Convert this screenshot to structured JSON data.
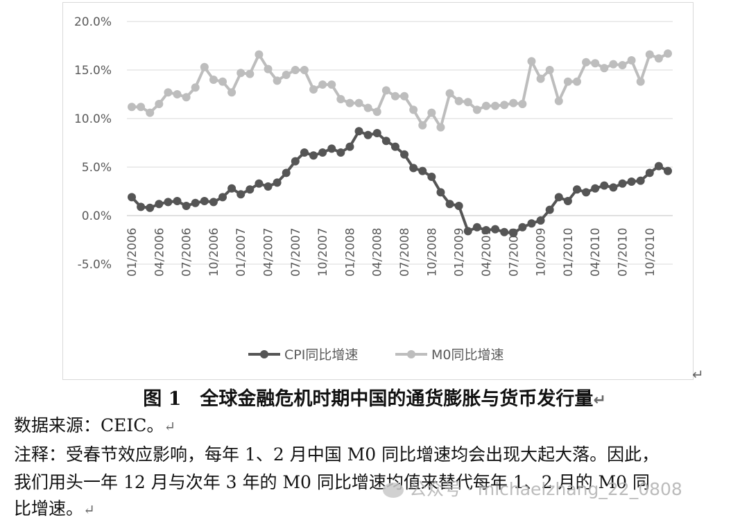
{
  "chart_data": {
    "type": "line",
    "ylim": [
      -5,
      20
    ],
    "yticks": [
      "20.0%",
      "15.0%",
      "10.0%",
      "5.0%",
      "0.0%",
      "-5.0%"
    ],
    "ytick_values": [
      20,
      15,
      10,
      5,
      0,
      -5
    ],
    "x": [
      "01/2006",
      "02/2006",
      "03/2006",
      "04/2006",
      "05/2006",
      "06/2006",
      "07/2006",
      "08/2006",
      "09/2006",
      "10/2006",
      "11/2006",
      "12/2006",
      "01/2007",
      "02/2007",
      "03/2007",
      "04/2007",
      "05/2007",
      "06/2007",
      "07/2007",
      "08/2007",
      "09/2007",
      "10/2007",
      "11/2007",
      "12/2007",
      "01/2008",
      "02/2008",
      "03/2008",
      "04/2008",
      "05/2008",
      "06/2008",
      "07/2008",
      "08/2008",
      "09/2008",
      "10/2008",
      "11/2008",
      "12/2008",
      "01/2009",
      "02/2009",
      "03/2009",
      "04/2009",
      "05/2009",
      "06/2009",
      "07/2009",
      "08/2009",
      "09/2009",
      "10/2009",
      "11/2009",
      "12/2009",
      "01/2010",
      "02/2010",
      "03/2010",
      "04/2010",
      "05/2010",
      "06/2010",
      "07/2010",
      "08/2010",
      "09/2010",
      "10/2010",
      "11/2010",
      "12/2010"
    ],
    "xtick_labels": [
      "01/2006",
      "04/2006",
      "07/2006",
      "10/2006",
      "01/2007",
      "04/2007",
      "07/2007",
      "10/2007",
      "01/2008",
      "04/2008",
      "07/2008",
      "10/2008",
      "01/2009",
      "04/2009",
      "07/2009",
      "10/2009",
      "01/2010",
      "04/2010",
      "07/2010",
      "10/2010"
    ],
    "series": [
      {
        "name": "CPI同比增速",
        "color": "#555555",
        "values": [
          1.9,
          0.9,
          0.8,
          1.2,
          1.4,
          1.5,
          1.0,
          1.3,
          1.5,
          1.4,
          1.9,
          2.8,
          2.2,
          2.7,
          3.3,
          3.0,
          3.4,
          4.4,
          5.6,
          6.5,
          6.2,
          6.5,
          6.9,
          6.5,
          7.1,
          8.7,
          8.3,
          8.5,
          7.7,
          7.1,
          6.3,
          4.9,
          4.6,
          4.0,
          2.4,
          1.2,
          1.0,
          -1.6,
          -1.2,
          -1.5,
          -1.4,
          -1.7,
          -1.8,
          -1.2,
          -0.8,
          -0.5,
          0.6,
          1.9,
          1.5,
          2.7,
          2.4,
          2.8,
          3.1,
          2.9,
          3.3,
          3.5,
          3.6,
          4.4,
          5.1,
          4.6
        ]
      },
      {
        "name": "M0同比增速",
        "color": "#bdbdbd",
        "values": [
          11.2,
          11.2,
          10.6,
          11.5,
          12.7,
          12.5,
          12.2,
          13.2,
          15.3,
          14.0,
          13.8,
          12.7,
          14.7,
          14.6,
          16.6,
          15.1,
          13.9,
          14.5,
          15.0,
          15.0,
          13.0,
          13.5,
          13.5,
          12.0,
          11.6,
          11.6,
          11.1,
          10.7,
          12.9,
          12.3,
          12.3,
          10.9,
          9.3,
          10.6,
          9.1,
          12.6,
          11.8,
          11.7,
          10.9,
          11.3,
          11.3,
          11.4,
          11.6,
          11.5,
          15.9,
          14.1,
          15.0,
          11.8,
          13.8,
          13.8,
          15.8,
          15.7,
          15.2,
          15.6,
          15.5,
          16.0,
          13.8,
          16.6,
          16.2,
          16.7
        ]
      }
    ],
    "legend_position": "bottom",
    "grid": true
  },
  "caption": "图 1　全球金融危机时期中国的通货膨胀与货币发行量",
  "source_line": "数据来源：CEIC。",
  "note_line1": "注释：受春节效应影响，每年 1、2 月中国 M0 同比增速均会出现大起大落。因此，",
  "note_line2": "我们用头一年 12 月与次年 3 年的 M0 同比增速均值来替代每年 1、2 月的 M0 同",
  "note_line3": "比增速。",
  "watermark": "公众号 · michaelzhang_22_0808",
  "return_mark": "↵"
}
